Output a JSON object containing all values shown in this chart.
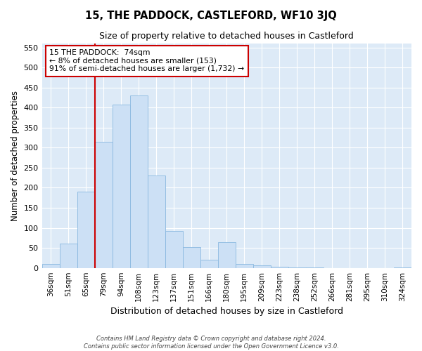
{
  "title": "15, THE PADDOCK, CASTLEFORD, WF10 3JQ",
  "subtitle": "Size of property relative to detached houses in Castleford",
  "xlabel": "Distribution of detached houses by size in Castleford",
  "ylabel": "Number of detached properties",
  "bin_labels": [
    "36sqm",
    "51sqm",
    "65sqm",
    "79sqm",
    "94sqm",
    "108sqm",
    "123sqm",
    "137sqm",
    "151sqm",
    "166sqm",
    "180sqm",
    "195sqm",
    "209sqm",
    "223sqm",
    "238sqm",
    "252sqm",
    "266sqm",
    "281sqm",
    "295sqm",
    "310sqm",
    "324sqm"
  ],
  "bar_heights": [
    10,
    60,
    190,
    315,
    407,
    430,
    230,
    92,
    52,
    20,
    65,
    10,
    7,
    3,
    1,
    1,
    0,
    0,
    0,
    0,
    1
  ],
  "bar_color": "#cce0f5",
  "bar_edge_color": "#89b8e0",
  "vline_color": "#cc0000",
  "annotation_text": "15 THE PADDOCK:  74sqm\n← 8% of detached houses are smaller (153)\n91% of semi-detached houses are larger (1,732) →",
  "annotation_box_color": "#ffffff",
  "annotation_box_edge": "#cc0000",
  "ylim": [
    0,
    560
  ],
  "yticks": [
    0,
    50,
    100,
    150,
    200,
    250,
    300,
    350,
    400,
    450,
    500,
    550
  ],
  "background_color": "#ddeaf7",
  "footer_line1": "Contains HM Land Registry data © Crown copyright and database right 2024.",
  "footer_line2": "Contains public sector information licensed under the Open Government Licence v3.0."
}
